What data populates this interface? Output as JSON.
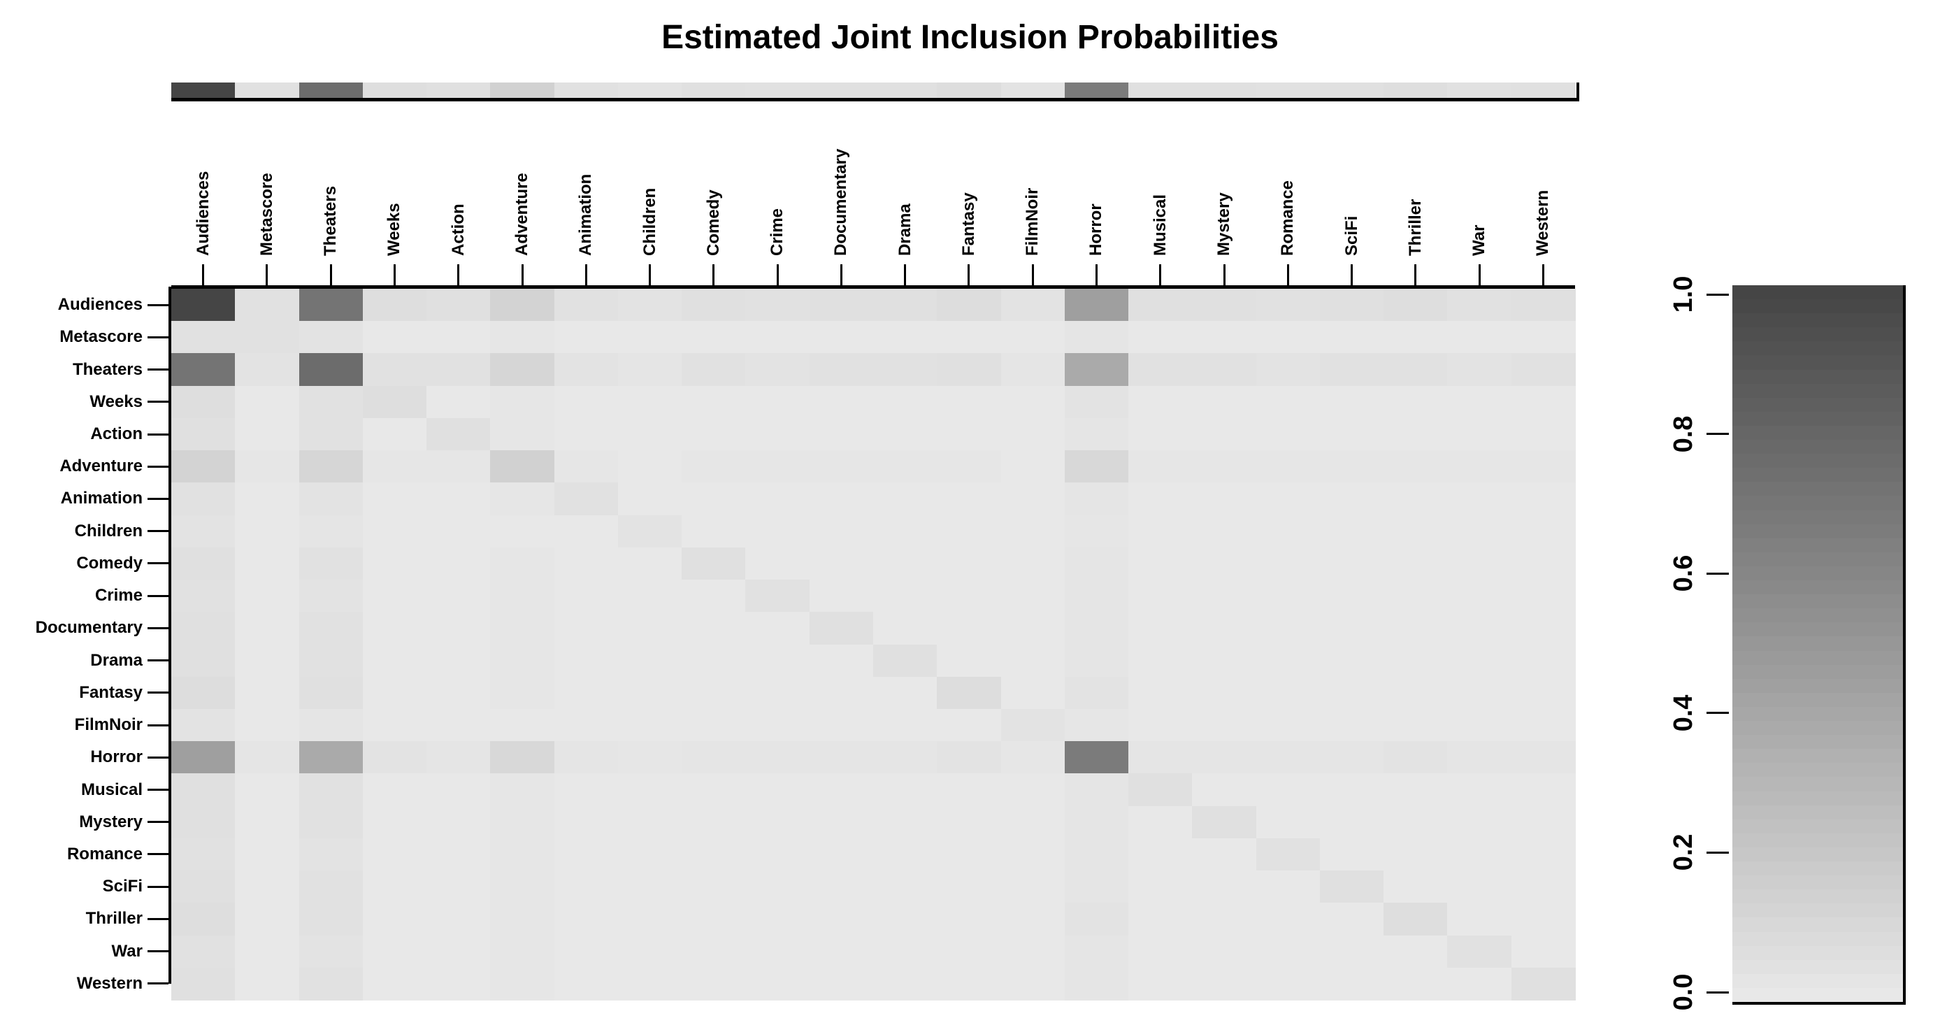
{
  "title": "Estimated Joint Inclusion Probabilities",
  "colors": {
    "background": "#ffffff",
    "axis": "#000000",
    "gradient_low": "#e8e8e8",
    "gradient_high": "#454545"
  },
  "chart_data": {
    "type": "heatmap",
    "title": "Estimated Joint Inclusion Probabilities",
    "xlabel": "",
    "ylabel": "",
    "grid": false,
    "legend_position": "right",
    "value_range": [
      0,
      1
    ],
    "categories": [
      "Audiences",
      "Metascore",
      "Theaters",
      "Weeks",
      "Action",
      "Adventure",
      "Animation",
      "Children",
      "Comedy",
      "Crime",
      "Documentary",
      "Drama",
      "Fantasy",
      "FilmNoir",
      "Horror",
      "Musical",
      "Mystery",
      "Romance",
      "SciFi",
      "Thriller",
      "War",
      "Western"
    ],
    "marginal_strip_values": [
      1.0,
      0.04,
      0.76,
      0.06,
      0.05,
      0.14,
      0.04,
      0.03,
      0.05,
      0.04,
      0.05,
      0.05,
      0.07,
      0.03,
      0.67,
      0.05,
      0.05,
      0.04,
      0.05,
      0.06,
      0.04,
      0.05
    ],
    "matrix": [
      [
        1.0,
        0.04,
        0.71,
        0.06,
        0.05,
        0.13,
        0.04,
        0.03,
        0.05,
        0.04,
        0.05,
        0.05,
        0.07,
        0.03,
        0.45,
        0.05,
        0.05,
        0.04,
        0.05,
        0.06,
        0.04,
        0.05
      ],
      [
        0.04,
        0.04,
        0.03,
        0.0,
        0.0,
        0.01,
        0.0,
        0.0,
        0.0,
        0.0,
        0.0,
        0.0,
        0.0,
        0.0,
        0.02,
        0.0,
        0.0,
        0.0,
        0.0,
        0.0,
        0.0,
        0.0
      ],
      [
        0.71,
        0.03,
        0.76,
        0.04,
        0.04,
        0.11,
        0.03,
        0.02,
        0.04,
        0.03,
        0.04,
        0.04,
        0.05,
        0.02,
        0.38,
        0.04,
        0.04,
        0.03,
        0.04,
        0.04,
        0.03,
        0.04
      ],
      [
        0.06,
        0.0,
        0.04,
        0.06,
        0.0,
        0.01,
        0.0,
        0.0,
        0.0,
        0.0,
        0.0,
        0.0,
        0.0,
        0.0,
        0.03,
        0.0,
        0.0,
        0.0,
        0.0,
        0.0,
        0.0,
        0.0
      ],
      [
        0.05,
        0.0,
        0.04,
        0.0,
        0.05,
        0.01,
        0.0,
        0.0,
        0.0,
        0.0,
        0.0,
        0.0,
        0.0,
        0.0,
        0.02,
        0.0,
        0.0,
        0.0,
        0.0,
        0.0,
        0.0,
        0.0
      ],
      [
        0.13,
        0.01,
        0.11,
        0.01,
        0.01,
        0.14,
        0.01,
        0.0,
        0.01,
        0.01,
        0.01,
        0.01,
        0.01,
        0.0,
        0.1,
        0.01,
        0.01,
        0.01,
        0.01,
        0.01,
        0.01,
        0.01
      ],
      [
        0.04,
        0.0,
        0.03,
        0.0,
        0.0,
        0.01,
        0.04,
        0.0,
        0.0,
        0.0,
        0.0,
        0.0,
        0.0,
        0.0,
        0.02,
        0.0,
        0.0,
        0.0,
        0.0,
        0.0,
        0.0,
        0.0
      ],
      [
        0.03,
        0.0,
        0.02,
        0.0,
        0.0,
        0.0,
        0.0,
        0.03,
        0.0,
        0.0,
        0.0,
        0.0,
        0.0,
        0.0,
        0.01,
        0.0,
        0.0,
        0.0,
        0.0,
        0.0,
        0.0,
        0.0
      ],
      [
        0.05,
        0.0,
        0.04,
        0.0,
        0.0,
        0.01,
        0.0,
        0.0,
        0.05,
        0.0,
        0.0,
        0.0,
        0.0,
        0.0,
        0.02,
        0.0,
        0.0,
        0.0,
        0.0,
        0.0,
        0.0,
        0.0
      ],
      [
        0.04,
        0.0,
        0.03,
        0.0,
        0.0,
        0.01,
        0.0,
        0.0,
        0.0,
        0.04,
        0.0,
        0.0,
        0.0,
        0.0,
        0.02,
        0.0,
        0.0,
        0.0,
        0.0,
        0.0,
        0.0,
        0.0
      ],
      [
        0.05,
        0.0,
        0.04,
        0.0,
        0.0,
        0.01,
        0.0,
        0.0,
        0.0,
        0.0,
        0.05,
        0.0,
        0.0,
        0.0,
        0.02,
        0.0,
        0.0,
        0.0,
        0.0,
        0.0,
        0.0,
        0.0
      ],
      [
        0.05,
        0.0,
        0.04,
        0.0,
        0.0,
        0.01,
        0.0,
        0.0,
        0.0,
        0.0,
        0.0,
        0.05,
        0.0,
        0.0,
        0.02,
        0.0,
        0.0,
        0.0,
        0.0,
        0.0,
        0.0,
        0.0
      ],
      [
        0.07,
        0.0,
        0.05,
        0.0,
        0.0,
        0.01,
        0.0,
        0.0,
        0.0,
        0.0,
        0.0,
        0.0,
        0.07,
        0.0,
        0.03,
        0.0,
        0.0,
        0.0,
        0.0,
        0.0,
        0.0,
        0.0
      ],
      [
        0.03,
        0.0,
        0.02,
        0.0,
        0.0,
        0.0,
        0.0,
        0.0,
        0.0,
        0.0,
        0.0,
        0.0,
        0.0,
        0.03,
        0.01,
        0.0,
        0.0,
        0.0,
        0.0,
        0.0,
        0.0,
        0.0
      ],
      [
        0.45,
        0.02,
        0.38,
        0.03,
        0.02,
        0.1,
        0.02,
        0.01,
        0.02,
        0.02,
        0.02,
        0.02,
        0.03,
        0.01,
        0.67,
        0.02,
        0.02,
        0.02,
        0.02,
        0.03,
        0.02,
        0.02
      ],
      [
        0.05,
        0.0,
        0.04,
        0.0,
        0.0,
        0.01,
        0.0,
        0.0,
        0.0,
        0.0,
        0.0,
        0.0,
        0.0,
        0.0,
        0.02,
        0.05,
        0.0,
        0.0,
        0.0,
        0.0,
        0.0,
        0.0
      ],
      [
        0.05,
        0.0,
        0.04,
        0.0,
        0.0,
        0.01,
        0.0,
        0.0,
        0.0,
        0.0,
        0.0,
        0.0,
        0.0,
        0.0,
        0.02,
        0.0,
        0.05,
        0.0,
        0.0,
        0.0,
        0.0,
        0.0
      ],
      [
        0.04,
        0.0,
        0.03,
        0.0,
        0.0,
        0.01,
        0.0,
        0.0,
        0.0,
        0.0,
        0.0,
        0.0,
        0.0,
        0.0,
        0.02,
        0.0,
        0.0,
        0.04,
        0.0,
        0.0,
        0.0,
        0.0
      ],
      [
        0.05,
        0.0,
        0.04,
        0.0,
        0.0,
        0.01,
        0.0,
        0.0,
        0.0,
        0.0,
        0.0,
        0.0,
        0.0,
        0.0,
        0.02,
        0.0,
        0.0,
        0.0,
        0.05,
        0.0,
        0.0,
        0.0
      ],
      [
        0.06,
        0.0,
        0.04,
        0.0,
        0.0,
        0.01,
        0.0,
        0.0,
        0.0,
        0.0,
        0.0,
        0.0,
        0.0,
        0.0,
        0.03,
        0.0,
        0.0,
        0.0,
        0.0,
        0.06,
        0.0,
        0.0
      ],
      [
        0.04,
        0.0,
        0.03,
        0.0,
        0.0,
        0.01,
        0.0,
        0.0,
        0.0,
        0.0,
        0.0,
        0.0,
        0.0,
        0.0,
        0.02,
        0.0,
        0.0,
        0.0,
        0.0,
        0.0,
        0.04,
        0.0
      ],
      [
        0.05,
        0.0,
        0.04,
        0.0,
        0.0,
        0.01,
        0.0,
        0.0,
        0.0,
        0.0,
        0.0,
        0.0,
        0.0,
        0.0,
        0.02,
        0.0,
        0.0,
        0.0,
        0.0,
        0.0,
        0.0,
        0.05
      ]
    ],
    "legend": {
      "orientation": "vertical",
      "min": 0.0,
      "max": 1.0,
      "tick_labels": [
        "0.0",
        "0.2",
        "0.4",
        "0.6",
        "0.8",
        "1.0"
      ],
      "gradient_low": "#e8e8e8",
      "gradient_high": "#454545"
    }
  }
}
